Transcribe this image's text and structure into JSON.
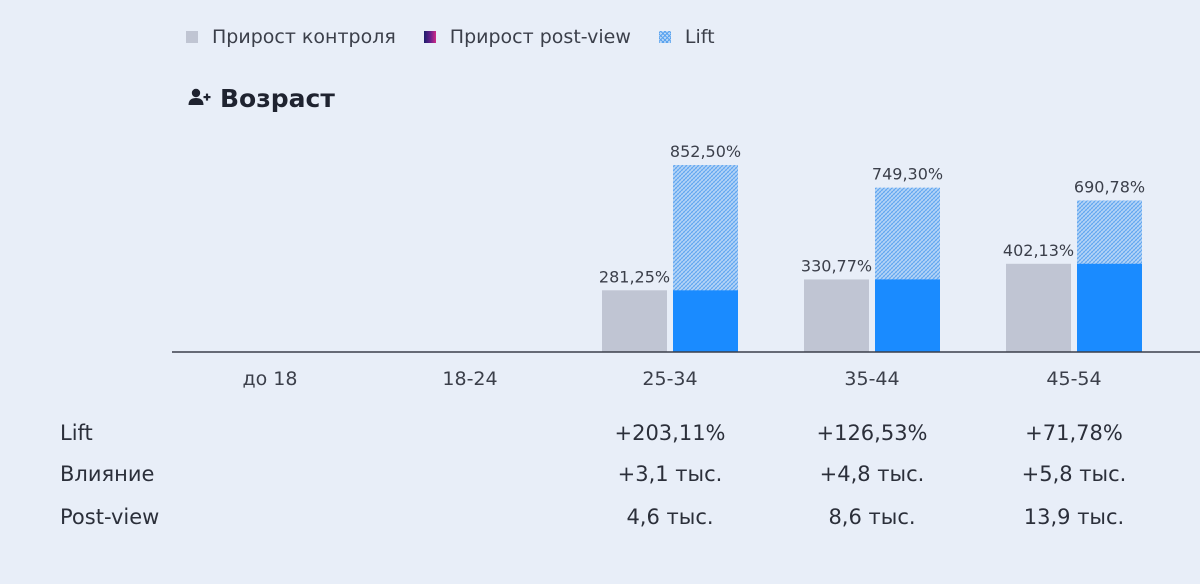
{
  "legend": {
    "control_label": "Прирост контроля",
    "postview_label": "Прирост post-view",
    "lift_label": "Lift"
  },
  "section": {
    "title": "Возраст",
    "icon": "add-user-icon"
  },
  "colors": {
    "background": "#e8eef8",
    "control": "#c0c5d3",
    "postview": "#1a8bff",
    "lift_pattern": "#5aa3ef",
    "axis": "#3b3f4a"
  },
  "chart_data": {
    "type": "bar",
    "categories": [
      "до 18",
      "18-24",
      "25-34",
      "35-44",
      "45-54"
    ],
    "series": [
      {
        "name": "Прирост контроля",
        "values": [
          null,
          null,
          281.25,
          330.77,
          402.13
        ],
        "labels": [
          "",
          "",
          "281,25%",
          "330,77%",
          "402,13%"
        ]
      },
      {
        "name": "Прирост post-view",
        "values": [
          null,
          null,
          281.25,
          330.77,
          402.13
        ],
        "labels": [
          "",
          "",
          "",
          "",
          ""
        ]
      },
      {
        "name": "Lift",
        "values": [
          null,
          null,
          852.5,
          749.3,
          690.78
        ],
        "labels": [
          "",
          "",
          "852,50%",
          "749,30%",
          "690,78%"
        ]
      }
    ],
    "ylim": [
      0,
      880
    ],
    "grid": false,
    "legend_position": "top-left"
  },
  "stats": {
    "rows": [
      {
        "label": "Lift",
        "values": [
          "",
          "",
          "+203,11%",
          "+126,53%",
          "+71,78%"
        ]
      },
      {
        "label": "Влияние",
        "values": [
          "",
          "",
          "+3,1 тыс.",
          "+4,8 тыс.",
          "+5,8 тыс."
        ]
      },
      {
        "label": "Post-view",
        "values": [
          "",
          "",
          "4,6 тыс.",
          "8,6 тыс.",
          "13,9 тыс."
        ]
      }
    ]
  }
}
